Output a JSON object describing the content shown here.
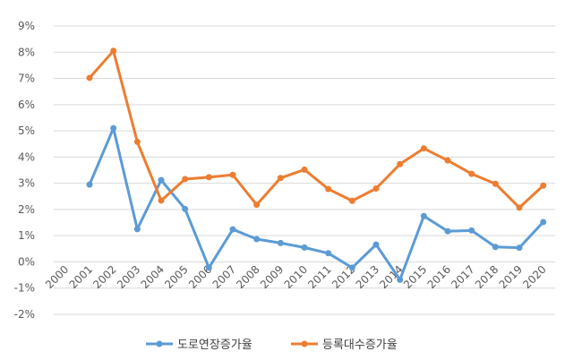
{
  "chart_data": {
    "type": "line",
    "title": "",
    "xlabel": "",
    "ylabel": "",
    "categories": [
      "2000",
      "2001",
      "2002",
      "2003",
      "2004",
      "2005",
      "2006",
      "2007",
      "2008",
      "2009",
      "2010",
      "2011",
      "2012",
      "2013",
      "2014",
      "2015",
      "2016",
      "2017",
      "2018",
      "2019",
      "2020"
    ],
    "ylim": [
      -2,
      9
    ],
    "yticks": [
      "-2%",
      "-1%",
      "0%",
      "1%",
      "2%",
      "3%",
      "4%",
      "5%",
      "6%",
      "7%",
      "8%",
      "9%"
    ],
    "grid": true,
    "legend_position": "bottom",
    "series": [
      {
        "name": "도로연장증가율",
        "color": "#5b9bd5",
        "values": [
          null,
          2.95,
          5.1,
          1.25,
          3.12,
          2.02,
          -0.22,
          1.24,
          0.87,
          0.72,
          0.55,
          0.33,
          -0.22,
          0.66,
          -0.68,
          1.75,
          1.17,
          1.2,
          0.57,
          0.54,
          1.52
        ]
      },
      {
        "name": "등록대수증가율",
        "color": "#ed7d31",
        "values": [
          null,
          7.02,
          8.05,
          4.58,
          2.34,
          3.16,
          3.23,
          3.32,
          2.18,
          3.2,
          3.52,
          2.78,
          2.33,
          2.8,
          3.73,
          4.33,
          3.87,
          3.36,
          2.98,
          2.07,
          2.91
        ]
      }
    ]
  }
}
